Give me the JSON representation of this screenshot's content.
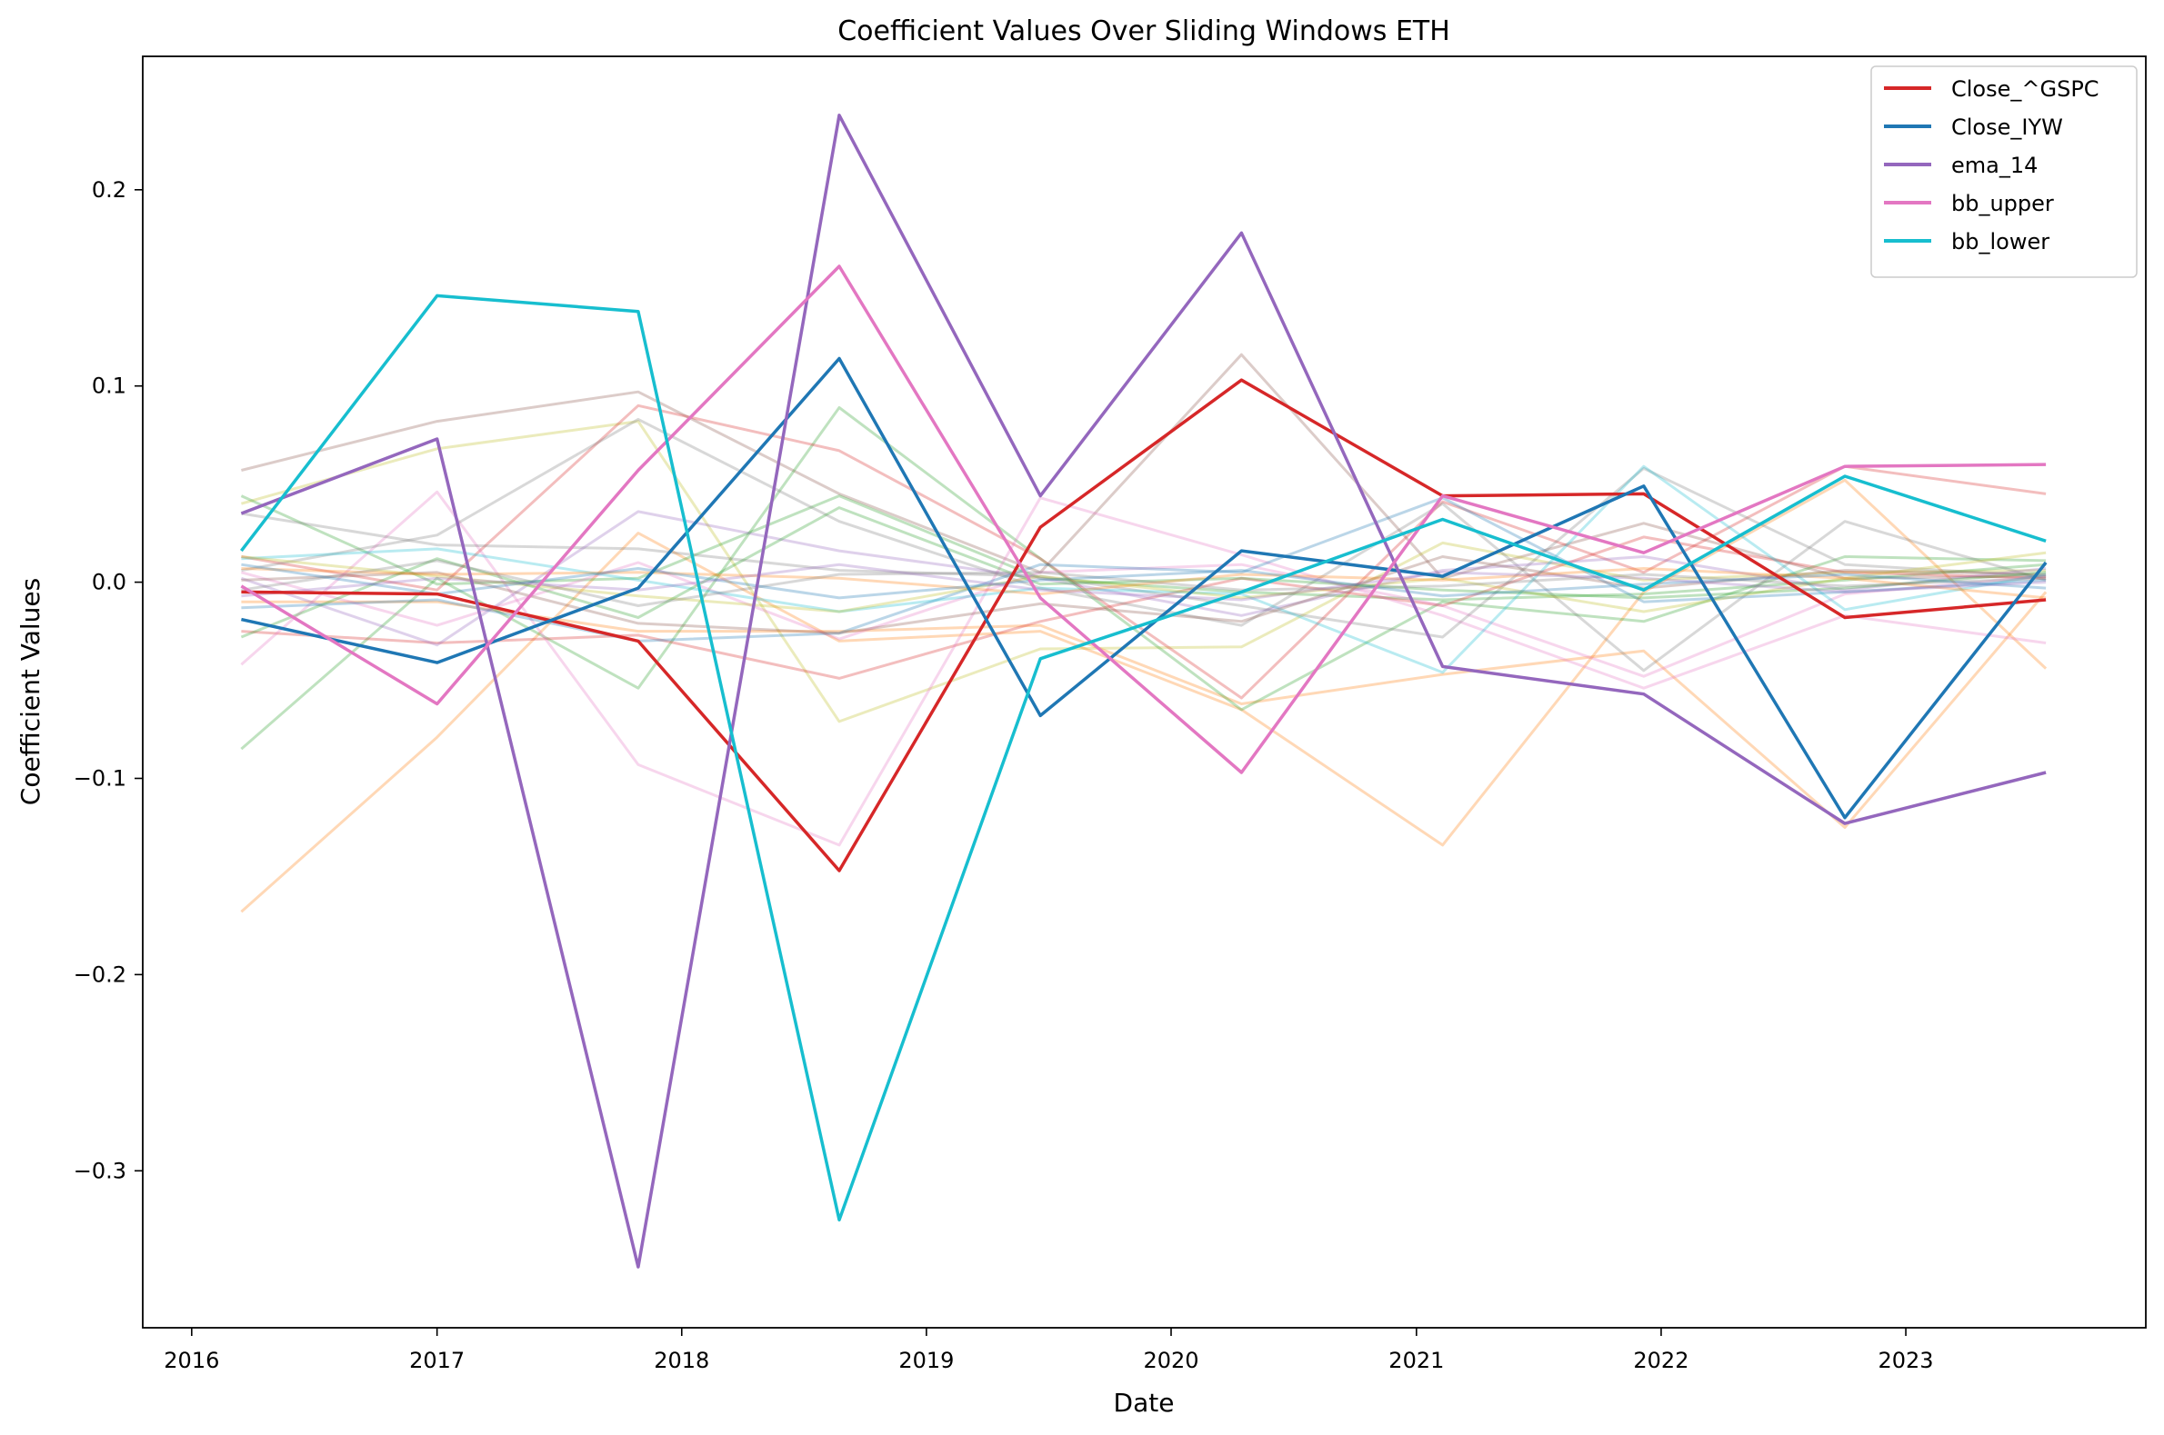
{
  "chart_data": {
    "type": "line",
    "title": "Coefficient Values Over Sliding Windows ETH",
    "xlabel": "Date",
    "ylabel": "Coefficient Values",
    "x": [
      "2016-03-15",
      "2017-01-01",
      "2017-10-28",
      "2018-08-24",
      "2019-06-20",
      "2020-04-15",
      "2021-02-09",
      "2021-12-06",
      "2022-10-02",
      "2023-07-29"
    ],
    "xlim": [
      "2015-10-20",
      "2023-12-25"
    ],
    "ylim": [
      -0.38,
      0.268
    ],
    "x_ticks": [
      "2016",
      "2017",
      "2018",
      "2019",
      "2020",
      "2021",
      "2022",
      "2023"
    ],
    "x_tick_dates": [
      "2016-01-01",
      "2017-01-01",
      "2018-01-01",
      "2019-01-01",
      "2020-01-01",
      "2021-01-01",
      "2022-01-01",
      "2023-01-01"
    ],
    "y_ticks": [
      -0.3,
      -0.2,
      -0.1,
      0.0,
      0.1,
      0.2
    ],
    "y_tick_labels": [
      "−0.3",
      "−0.2",
      "−0.1",
      "0.0",
      "0.1",
      "0.2"
    ],
    "grid": false,
    "legend_position": "top-right",
    "series": [
      {
        "name": "Close_^GSPC",
        "color": "#d62728",
        "values": [
          -0.005,
          -0.006,
          -0.03,
          -0.147,
          0.028,
          0.103,
          0.044,
          0.045,
          -0.018,
          -0.009
        ]
      },
      {
        "name": "Close_IYW",
        "color": "#1f77b4",
        "values": [
          -0.019,
          -0.041,
          -0.003,
          0.114,
          -0.068,
          0.016,
          0.003,
          0.049,
          -0.12,
          0.01
        ]
      },
      {
        "name": "ema_14",
        "color": "#9467bd",
        "values": [
          0.035,
          0.073,
          -0.349,
          0.238,
          0.044,
          0.178,
          -0.043,
          -0.057,
          -0.123,
          -0.097
        ]
      },
      {
        "name": "bb_upper",
        "color": "#e377c2",
        "values": [
          -0.002,
          -0.062,
          0.057,
          0.161,
          -0.008,
          -0.097,
          0.044,
          0.015,
          0.059,
          0.06
        ]
      },
      {
        "name": "bb_lower",
        "color": "#17becf",
        "values": [
          0.016,
          0.146,
          0.138,
          -0.325,
          -0.039,
          -0.005,
          0.032,
          -0.004,
          0.054,
          0.021
        ]
      }
    ],
    "background_series": [
      {
        "color": "#8c564b",
        "values": [
          0.057,
          0.082,
          0.097,
          0.045,
          0.005,
          0.116,
          0.002,
          0.03,
          0.002,
          0.003
        ]
      },
      {
        "color": "#bcbd22",
        "values": [
          0.04,
          0.068,
          0.082,
          -0.071,
          -0.034,
          -0.033,
          0.02,
          0.001,
          0.005,
          0.006
        ]
      },
      {
        "color": "#ff7f0e",
        "values": [
          -0.168,
          -0.079,
          0.025,
          -0.03,
          -0.025,
          -0.065,
          -0.134,
          -0.005,
          0.052,
          -0.044
        ]
      },
      {
        "color": "#ff7f0e",
        "values": [
          -0.01,
          -0.01,
          -0.025,
          -0.025,
          -0.022,
          -0.062,
          -0.047,
          -0.035,
          -0.125,
          -0.005
        ]
      },
      {
        "color": "#2ca02c",
        "values": [
          -0.085,
          0.002,
          -0.054,
          0.089,
          0.012,
          -0.065,
          -0.01,
          -0.02,
          0.013,
          0.011
        ]
      },
      {
        "color": "#2ca02c",
        "values": [
          0.044,
          -0.001,
          0.002,
          0.044,
          0.002,
          -0.005,
          -0.009,
          -0.006,
          0.001,
          0.009
        ]
      },
      {
        "color": "#d62728",
        "values": [
          0.013,
          -0.004,
          0.09,
          0.067,
          0.012,
          -0.059,
          0.041,
          0.005,
          0.059,
          0.045
        ]
      },
      {
        "color": "#d62728",
        "values": [
          -0.025,
          -0.031,
          -0.027,
          -0.049,
          -0.02,
          0.002,
          -0.012,
          0.023,
          0.005,
          0.002
        ]
      },
      {
        "color": "#e377c2",
        "values": [
          -0.042,
          0.046,
          -0.093,
          -0.134,
          0.043,
          0.014,
          -0.017,
          -0.054,
          -0.017,
          -0.031
        ]
      },
      {
        "color": "#e377c2",
        "values": [
          0.005,
          -0.022,
          0.01,
          -0.029,
          0.005,
          0.009,
          -0.012,
          -0.048,
          -0.006,
          0.003
        ]
      },
      {
        "color": "#7f7f7f",
        "values": [
          0.006,
          0.024,
          0.083,
          0.031,
          -0.003,
          -0.022,
          0.04,
          -0.045,
          0.031,
          0.001
        ]
      },
      {
        "color": "#7f7f7f",
        "values": [
          0.035,
          0.019,
          0.017,
          0.006,
          0.003,
          -0.012,
          -0.028,
          0.058,
          0.009,
          0.003
        ]
      },
      {
        "color": "#9467bd",
        "values": [
          0.002,
          -0.032,
          0.036,
          0.016,
          0.002,
          -0.017,
          0.006,
          0.013,
          -0.004,
          0.007
        ]
      },
      {
        "color": "#1f77b4",
        "values": [
          -0.013,
          -0.009,
          -0.03,
          -0.026,
          0.009,
          0.005,
          0.043,
          -0.01,
          -0.005,
          0.001
        ]
      },
      {
        "color": "#17becf",
        "values": [
          0.012,
          0.017,
          0.001,
          -0.015,
          -0.003,
          -0.006,
          -0.046,
          0.059,
          -0.014,
          0.004
        ]
      },
      {
        "color": "#bcbd22",
        "values": [
          0.013,
          0.003,
          -0.007,
          -0.015,
          0.003,
          -0.008,
          0.002,
          -0.015,
          0.002,
          0.015
        ]
      },
      {
        "color": "#8c564b",
        "values": [
          0.001,
          0.005,
          -0.021,
          -0.026,
          -0.011,
          -0.02,
          0.013,
          -0.003,
          0.006,
          0.004
        ]
      },
      {
        "color": "#2ca02c",
        "values": [
          -0.028,
          0.012,
          -0.018,
          0.038,
          -0.001,
          0.002,
          -0.004,
          -0.008,
          -0.003,
          0.005
        ]
      },
      {
        "color": "#ff7f0e",
        "values": [
          0.007,
          0.004,
          0.005,
          0.002,
          -0.006,
          0.004,
          0.001,
          0.007,
          0.002,
          -0.008
        ]
      },
      {
        "color": "#7f7f7f",
        "values": [
          -0.004,
          0.011,
          -0.012,
          0.004,
          0.005,
          -0.004,
          -0.002,
          0.004,
          -0.002,
          0.002
        ]
      },
      {
        "color": "#1f77b4",
        "values": [
          0.009,
          -0.006,
          0.007,
          -0.008,
          0.001,
          0.006,
          -0.007,
          -0.001,
          0.004,
          -0.003
        ]
      },
      {
        "color": "#9467bd",
        "values": [
          -0.007,
          0.002,
          -0.004,
          0.009,
          -0.004,
          -0.009,
          0.005,
          0.002,
          -0.005,
          0.0
        ]
      }
    ]
  }
}
